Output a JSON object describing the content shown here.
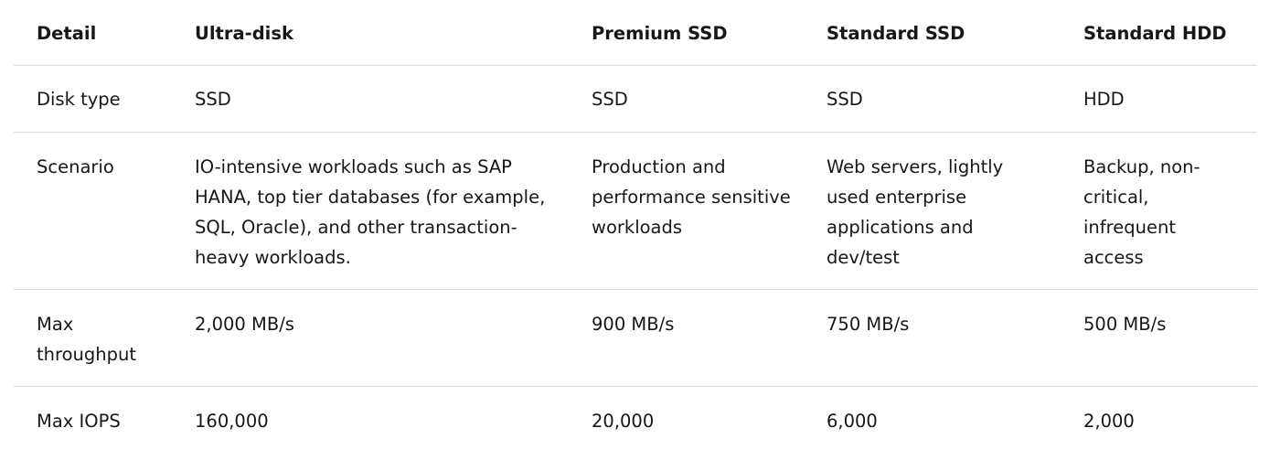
{
  "table": {
    "headers": [
      "Detail",
      "Ultra-disk",
      "Premium SSD",
      "Standard SSD",
      "Standard HDD"
    ],
    "rows": [
      [
        "Disk type",
        "SSD",
        "SSD",
        "SSD",
        "HDD"
      ],
      [
        "Scenario",
        "IO-intensive workloads such as SAP HANA, top tier databases (for example, SQL, Oracle), and other transaction-heavy workloads.",
        "Production and performance sensitive workloads",
        "Web servers, lightly used enterprise applications and dev/test",
        "Backup, non-critical, infrequent access"
      ],
      [
        "Max throughput",
        "2,000 MB/s",
        "900 MB/s",
        "750 MB/s",
        "500 MB/s"
      ],
      [
        "Max IOPS",
        "160,000",
        "20,000",
        "6,000",
        "2,000"
      ]
    ]
  }
}
